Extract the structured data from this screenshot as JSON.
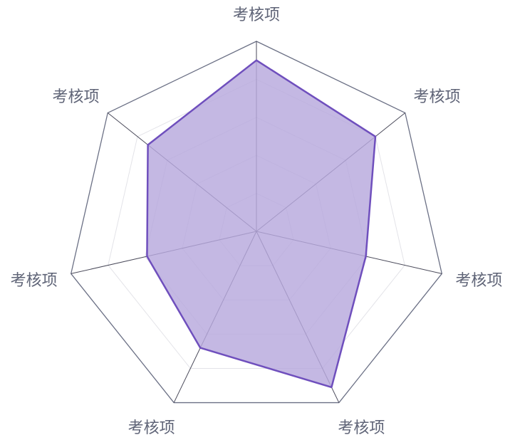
{
  "chart_data": {
    "type": "radar",
    "indicators": [
      {
        "name": "考核项",
        "max": 100
      },
      {
        "name": "考核项",
        "max": 100
      },
      {
        "name": "考核项",
        "max": 100
      },
      {
        "name": "考核项",
        "max": 100
      },
      {
        "name": "考核项",
        "max": 100
      },
      {
        "name": "考核项",
        "max": 100
      },
      {
        "name": "考核项",
        "max": 100
      }
    ],
    "series": [
      {
        "values": [
          90,
          80,
          59,
          91,
          68,
          59,
          73
        ]
      }
    ],
    "split_number": 5,
    "colors": {
      "series_line": "#6f4fbd",
      "series_fill": "#b7a8dd",
      "axis_line": "#4a4a5a",
      "outer_ring": "#6b7085",
      "inner_grid": "#e3e3e8",
      "label": "#5f6477"
    }
  }
}
